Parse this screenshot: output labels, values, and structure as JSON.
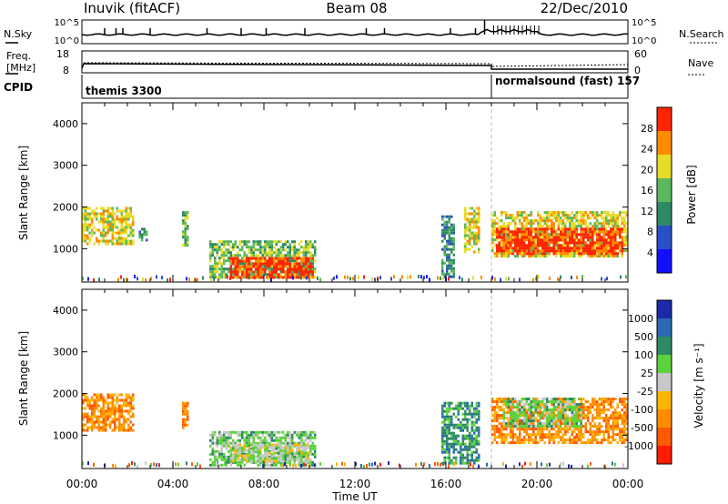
{
  "header": {
    "station": "Inuvik (fitACF)",
    "beam": "Beam 08",
    "date": "22/Dec/2010"
  },
  "noise_panel": {
    "left_label": "N.Sky",
    "left_ticks": [
      "10^5",
      "10^0"
    ],
    "right_label": "N.Search",
    "right_ticks": [
      "10^5",
      "10^0"
    ]
  },
  "freq_panel": {
    "left_label_1": "Freq.",
    "left_label_2": "[MHz]",
    "left_ticks": [
      "18",
      "8"
    ],
    "right_label": "Nave",
    "right_ticks": [
      "60",
      "0"
    ]
  },
  "cpid_panel": {
    "label": "CPID",
    "modes": [
      {
        "name": "themis 3300",
        "start_hour": 0
      },
      {
        "name": "normalsound (fast) 157",
        "start_hour": 18
      }
    ]
  },
  "chart_data": [
    {
      "type": "heatmap",
      "panel": "power",
      "ylabel": "Slant Range [km]",
      "yticks": [
        "1000",
        "2000",
        "3000",
        "4000"
      ],
      "ylim": [
        200,
        4500
      ],
      "xlim": [
        0,
        24
      ],
      "colorbar_label": "Power [dB]",
      "colorbar_ticks": [
        "28",
        "24",
        "20",
        "16",
        "12",
        "8",
        "4"
      ],
      "colors": [
        "#1010ff",
        "#2a50c8",
        "#2e8a64",
        "#5cb85c",
        "#e8dc28",
        "#ff8c00",
        "#ff2400"
      ],
      "regions": [
        {
          "x": [
            0.0,
            2.3
          ],
          "y": [
            1100,
            2000
          ],
          "level": 4
        },
        {
          "x": [
            2.5,
            2.9
          ],
          "y": [
            1200,
            1500
          ],
          "level": 2
        },
        {
          "x": [
            4.4,
            4.7
          ],
          "y": [
            1100,
            1900
          ],
          "level": 3
        },
        {
          "x": [
            5.6,
            10.3
          ],
          "y": [
            300,
            1200
          ],
          "level": 3
        },
        {
          "x": [
            6.5,
            10.2
          ],
          "y": [
            300,
            800
          ],
          "level": 6
        },
        {
          "x": [
            15.8,
            16.4
          ],
          "y": [
            300,
            1800
          ],
          "level": 2
        },
        {
          "x": [
            16.8,
            17.5
          ],
          "y": [
            900,
            2000
          ],
          "level": 4
        },
        {
          "x": [
            18.0,
            24.0
          ],
          "y": [
            800,
            1900
          ],
          "level": 4
        },
        {
          "x": [
            18.2,
            23.8
          ],
          "y": [
            900,
            1500
          ],
          "level": 6
        }
      ]
    },
    {
      "type": "heatmap",
      "panel": "velocity",
      "ylabel": "Slant Range [km]",
      "yticks": [
        "1000",
        "2000",
        "3000",
        "4000"
      ],
      "ylim": [
        200,
        4500
      ],
      "xlim": [
        0,
        24
      ],
      "xticks": [
        "00:00",
        "04:00",
        "08:00",
        "12:00",
        "16:00",
        "20:00",
        "00:00"
      ],
      "xlabel": "Time UT",
      "colorbar_label": "Velocity [m s⁻¹]",
      "colorbar_ticks": [
        "1000",
        "500",
        "100",
        "25",
        "-25",
        "-100",
        "-500",
        "-1000"
      ],
      "colors": [
        "#ff1a00",
        "#ff5a00",
        "#ff8c00",
        "#ffb400",
        "#c8c8c8",
        "#5cd23c",
        "#2e8a64",
        "#2a6ab0",
        "#1a2aa8"
      ],
      "regions": [
        {
          "x": [
            0.0,
            2.3
          ],
          "y": [
            1100,
            2000
          ],
          "level": 2
        },
        {
          "x": [
            4.4,
            4.7
          ],
          "y": [
            1200,
            1800
          ],
          "level": 2
        },
        {
          "x": [
            5.6,
            10.3
          ],
          "y": [
            300,
            1100
          ],
          "level": 5
        },
        {
          "x": [
            6.5,
            10.0
          ],
          "y": [
            400,
            800
          ],
          "level": 4
        },
        {
          "x": [
            15.8,
            17.5
          ],
          "y": [
            300,
            1800
          ],
          "level": 6
        },
        {
          "x": [
            18.0,
            24.0
          ],
          "y": [
            800,
            1900
          ],
          "level": 2
        },
        {
          "x": [
            18.5,
            22.0
          ],
          "y": [
            1200,
            1900
          ],
          "level": 5
        }
      ]
    }
  ]
}
